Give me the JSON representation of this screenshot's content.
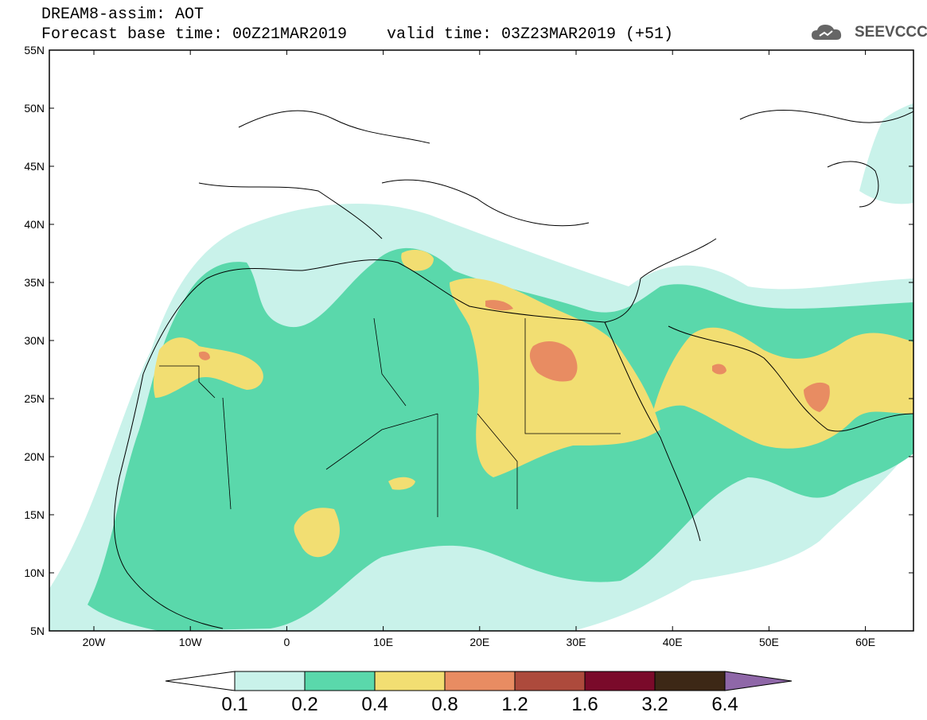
{
  "header": {
    "title": "DREAM8-assim: AOT",
    "forecast": "Forecast base time: 00Z21MAR2019",
    "valid": "valid time: 03Z23MAR2019 (+51)",
    "logo_text": "SEEVCCC",
    "logo_icon": "cloud-icon"
  },
  "axes": {
    "lat_labels": [
      "55N",
      "50N",
      "45N",
      "40N",
      "35N",
      "30N",
      "25N",
      "20N",
      "15N",
      "10N",
      "5N"
    ],
    "lon_labels": [
      "20W",
      "10W",
      "0",
      "10E",
      "20E",
      "30E",
      "40E",
      "50E",
      "60E"
    ]
  },
  "colorbar": {
    "labels": [
      "0.1",
      "0.2",
      "0.4",
      "0.8",
      "1.2",
      "1.6",
      "3.2",
      "6.4"
    ],
    "colors": [
      "#ffffff",
      "#c9f2ea",
      "#5ad8ab",
      "#f2de72",
      "#e88c62",
      "#ad4a3c",
      "#7a0a2a",
      "#3d2816",
      "#8f67a8"
    ]
  }
}
